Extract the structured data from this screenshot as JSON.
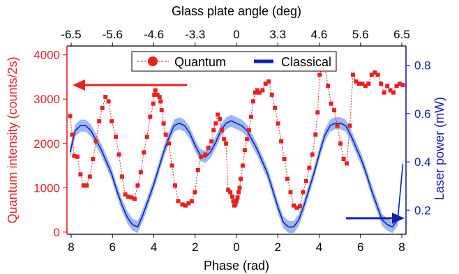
{
  "chart_data": {
    "type": "scatter",
    "top_axis_title": "Glass plate angle (deg)",
    "bottom_axis_title": "Phase (rad)",
    "left_axis_title": "Quantum intensity (counts/2s)",
    "right_axis_title": "Laser power (mW)",
    "top_ticks": [
      "-6.5",
      "-5.6",
      "-4.6",
      "-3.3",
      "0",
      "3.3",
      "4.6",
      "5.6",
      "6.5"
    ],
    "bottom_ticks": [
      8,
      6,
      4,
      2,
      0,
      2,
      4,
      6,
      8
    ],
    "left_ticks": [
      0,
      1000,
      2000,
      3000,
      4000
    ],
    "right_ticks": [
      "0.2",
      "0.4",
      "0.6",
      "0.8"
    ],
    "left_ylim": [
      -50,
      4200
    ],
    "right_ylim": [
      0.1,
      0.88
    ],
    "legend": [
      {
        "name": "Quantum",
        "marker": "circle-dashed"
      },
      {
        "name": "Classical",
        "marker": "solid-line"
      }
    ],
    "colors": {
      "quantum": "#e8211f",
      "classical": "#1320b8",
      "band": "#7c9ff0",
      "axis_left": "#e8211f",
      "axis_right": "#1320b8"
    },
    "series": [
      {
        "name": "Quantum",
        "axis": "left",
        "x": [
          -16.0,
          -15.8,
          -15.6,
          -15.3,
          -15.0,
          -14.7,
          -14.4,
          -14.1,
          -13.8,
          -13.5,
          -13.2,
          -12.9,
          -12.6,
          -12.3,
          -12.0,
          -11.6,
          -11.3,
          -11.0,
          -10.7,
          -10.4,
          -10.1,
          -9.8,
          -9.5,
          -9.2,
          -8.9,
          -8.6,
          -8.3,
          -8.0,
          -7.9,
          -7.8,
          -7.6,
          -7.4,
          -7.3,
          -7.2,
          -7.0,
          -6.8,
          -6.5,
          -6.2,
          -5.9,
          -5.6,
          -5.2,
          -4.9,
          -4.6,
          -4.3,
          -4.0,
          -3.7,
          -3.4,
          -3.0,
          -2.7,
          -2.4,
          -2.2,
          -2.0,
          -1.8,
          -1.6,
          -1.4,
          -1.2,
          -1.0,
          -0.8,
          -0.6,
          -0.4,
          -0.3,
          -0.2,
          -0.1,
          0.0,
          0.1,
          0.2,
          0.3,
          0.4,
          0.6,
          0.8,
          1.0,
          1.2,
          1.4,
          1.6,
          1.8,
          2.0,
          2.2,
          2.5,
          2.8,
          3.1,
          3.4,
          3.7,
          4.0,
          4.3,
          4.6,
          4.9,
          5.2,
          5.5,
          5.8,
          6.1,
          6.4,
          6.7,
          7.0,
          7.3,
          7.6,
          7.8,
          8.0,
          8.2,
          8.5,
          8.8,
          9.1,
          9.4,
          9.7,
          10.0,
          10.3,
          10.6,
          10.9,
          11.2,
          11.5,
          11.8,
          12.1,
          12.4,
          12.7,
          13.0,
          13.3,
          13.6,
          13.9,
          14.2,
          14.5,
          14.8,
          15.1,
          15.4,
          15.7,
          16.0
        ],
        "y": [
          2620,
          2200,
          1720,
          1700,
          1300,
          1050,
          1050,
          1250,
          1650,
          2050,
          2500,
          2800,
          3050,
          2950,
          2500,
          2150,
          1750,
          1250,
          850,
          800,
          780,
          750,
          1050,
          1350,
          1800,
          2150,
          2600,
          2900,
          3100,
          3200,
          3100,
          3050,
          2950,
          2750,
          2450,
          2200,
          2000,
          1500,
          1050,
          700,
          620,
          600,
          650,
          700,
          900,
          1400,
          1700,
          1750,
          1900,
          2050,
          2300,
          2450,
          2650,
          2550,
          2300,
          2100,
          2000,
          950,
          900,
          800,
          700,
          600,
          620,
          700,
          780,
          900,
          1000,
          1200,
          1500,
          1850,
          2100,
          2300,
          2600,
          2950,
          3150,
          3200,
          3150,
          3200,
          3350,
          3400,
          3100,
          2800,
          2450,
          2050,
          1650,
          1200,
          900,
          600,
          550,
          580,
          900,
          1150,
          1450,
          1750,
          2200,
          2700,
          3550,
          3700,
          3700,
          3300,
          2900,
          2750,
          2400,
          2000,
          1650,
          1550,
          2400,
          3550,
          3400,
          3350,
          3350,
          3300,
          3350,
          3550,
          3600,
          3550,
          3350,
          3150,
          3300,
          3200,
          3150,
          3300,
          3350,
          3320
        ]
      },
      {
        "name": "Classical",
        "axis": "right",
        "x": [
          -16.0,
          -15.5,
          -15.0,
          -14.5,
          -14.0,
          -13.5,
          -13.0,
          -12.5,
          -12.0,
          -11.5,
          -11.0,
          -10.5,
          -10.0,
          -9.5,
          -9.0,
          -8.5,
          -8.0,
          -7.5,
          -7.0,
          -6.5,
          -6.0,
          -5.5,
          -5.0,
          -4.5,
          -4.0,
          -3.5,
          -3.0,
          -2.5,
          -2.0,
          -1.5,
          -1.0,
          -0.5,
          0.0,
          0.5,
          1.0,
          1.5,
          2.0,
          2.5,
          3.0,
          3.5,
          4.0,
          4.5,
          5.0,
          5.5,
          6.0,
          6.5,
          7.0,
          7.5,
          8.0,
          8.5,
          9.0,
          9.5,
          10.0,
          10.5,
          11.0,
          11.5,
          12.0,
          12.5,
          13.0,
          13.5,
          14.0,
          14.5,
          15.0,
          15.5,
          16.0
        ],
        "y": [
          0.44,
          0.53,
          0.55,
          0.55,
          0.53,
          0.49,
          0.45,
          0.4,
          0.35,
          0.28,
          0.22,
          0.17,
          0.14,
          0.13,
          0.18,
          0.24,
          0.3,
          0.37,
          0.44,
          0.5,
          0.55,
          0.56,
          0.55,
          0.52,
          0.47,
          0.43,
          0.42,
          0.44,
          0.48,
          0.53,
          0.56,
          0.57,
          0.56,
          0.55,
          0.53,
          0.49,
          0.45,
          0.4,
          0.35,
          0.28,
          0.21,
          0.15,
          0.13,
          0.13,
          0.16,
          0.22,
          0.29,
          0.36,
          0.44,
          0.51,
          0.55,
          0.56,
          0.56,
          0.55,
          0.51,
          0.46,
          0.41,
          0.35,
          0.28,
          0.22,
          0.16,
          0.14,
          0.13,
          0.16,
          0.39
        ]
      }
    ]
  }
}
